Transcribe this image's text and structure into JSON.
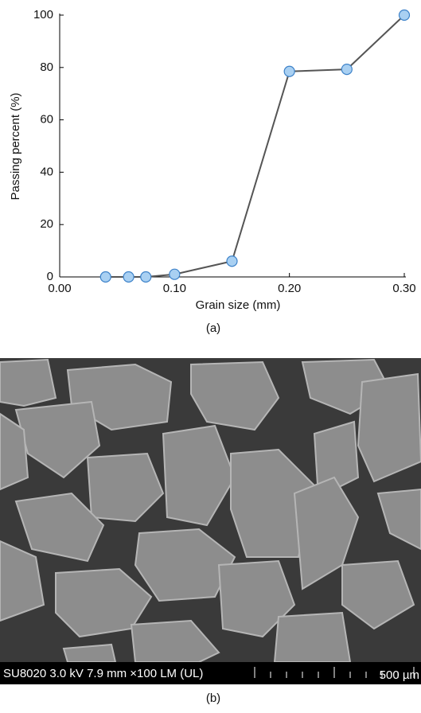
{
  "chart_data": {
    "type": "line",
    "xlabel": "Grain size (mm)",
    "ylabel": "Passing percent (%)",
    "caption": "(a)",
    "x": [
      0.04,
      0.06,
      0.075,
      0.1,
      0.15,
      0.2,
      0.25,
      0.3
    ],
    "series": [
      {
        "color": "#555555",
        "marker_color": "#a9d0f2",
        "values": [
          0,
          0,
          0,
          1,
          6,
          78.5,
          79.3,
          100
        ]
      }
    ],
    "xlim": [
      0,
      0.3
    ],
    "xticks": [
      {
        "value": 0,
        "label": "0.00"
      },
      {
        "value": 0.1,
        "label": "0.10"
      },
      {
        "value": 0.2,
        "label": "0.20"
      },
      {
        "value": 0.3,
        "label": "0.30"
      }
    ],
    "ylim": [
      0,
      100
    ],
    "yticks": [
      0,
      20,
      40,
      60,
      80,
      100
    ],
    "grid": false
  },
  "image": {
    "info": "SU8020 3.0 kV 7.9 mm ×100 LM (UL)",
    "scale": "500 µm",
    "caption": "(b)"
  }
}
